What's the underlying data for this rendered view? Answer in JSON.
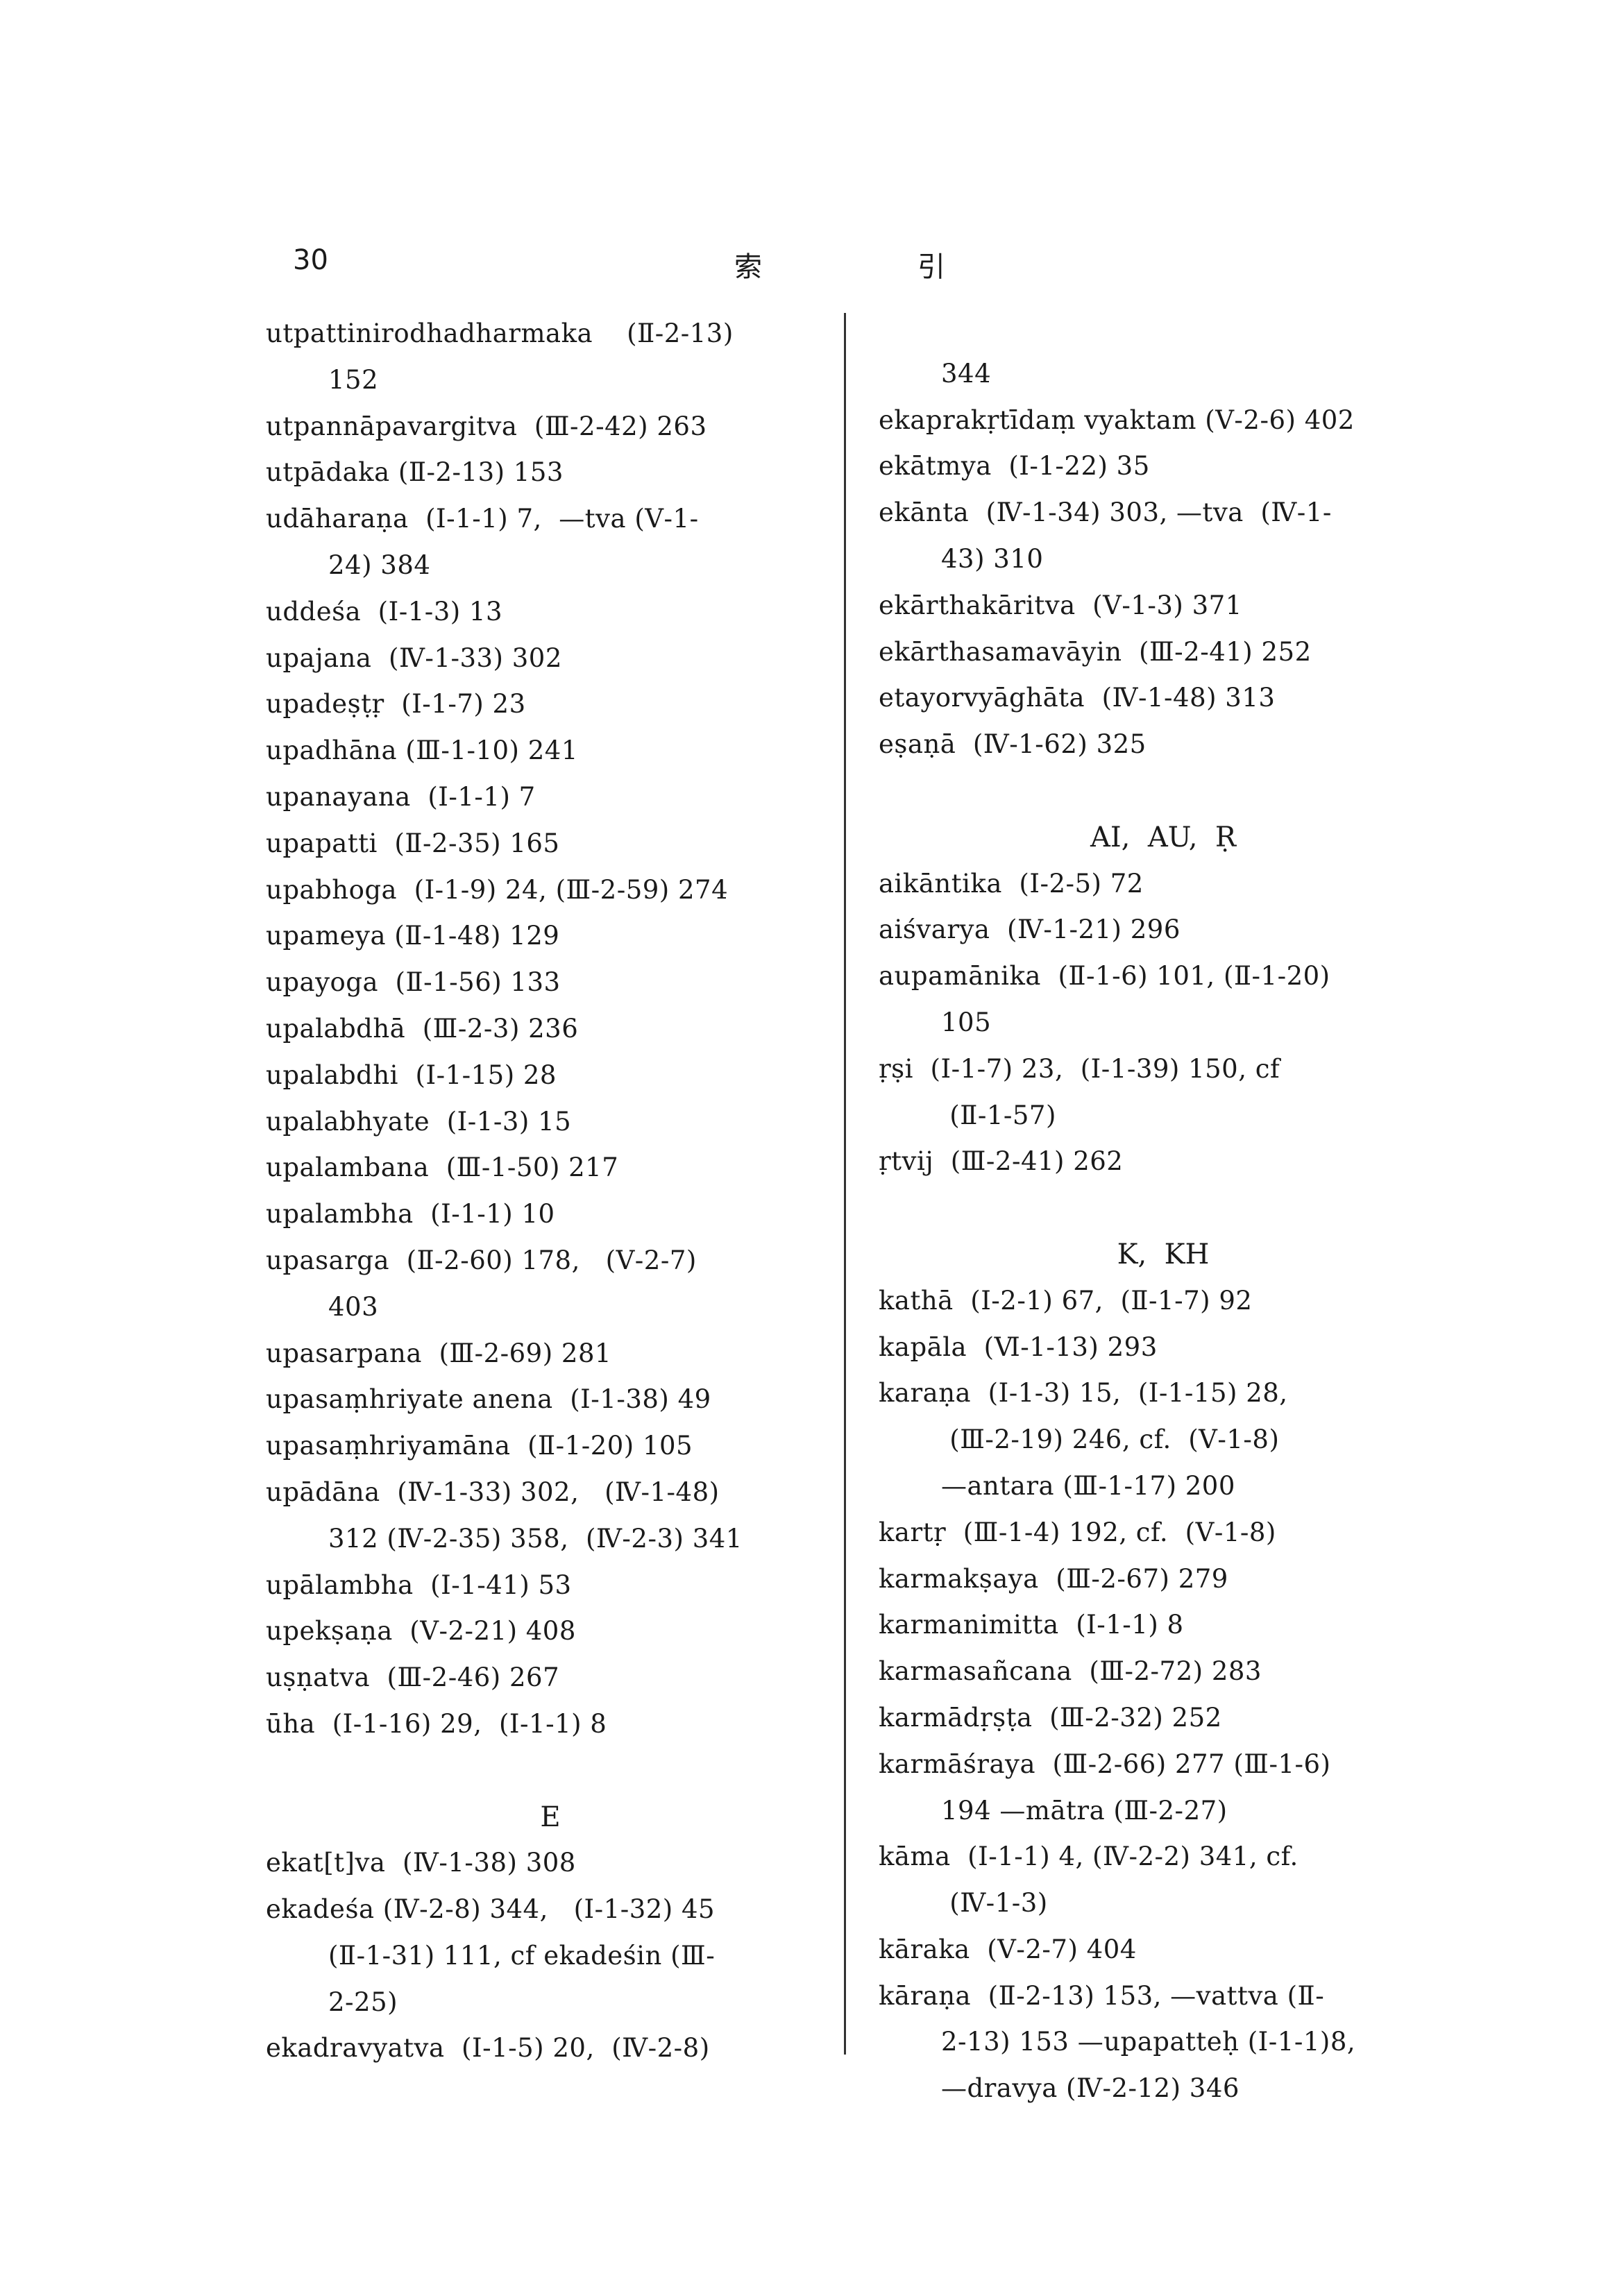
{
  "header": {
    "page_number": "30",
    "title_left": "索",
    "title_right": "引"
  },
  "left_column": [
    {
      "type": "entry",
      "lines": [
        "utpattinirodhadharmaka    (Ⅱ-2-13)",
        "152"
      ]
    },
    {
      "type": "entry",
      "lines": [
        "utpannāpavargitva  (Ⅲ-2-42) 263"
      ]
    },
    {
      "type": "entry",
      "lines": [
        "utpādaka (Ⅱ-2-13) 153"
      ]
    },
    {
      "type": "entry",
      "lines": [
        "udāharaṇa  (Ⅰ-1-1) 7,  —tva (Ⅴ-1-",
        "24) 384"
      ]
    },
    {
      "type": "entry",
      "lines": [
        "uddeśa  (Ⅰ-1-3) 13"
      ]
    },
    {
      "type": "entry",
      "lines": [
        "upajana  (Ⅳ-1-33) 302"
      ]
    },
    {
      "type": "entry",
      "lines": [
        "upadeṣṭṛ  (Ⅰ-1-7) 23"
      ]
    },
    {
      "type": "entry",
      "lines": [
        "upadhāna (Ⅲ-1-10) 241"
      ]
    },
    {
      "type": "entry",
      "lines": [
        "upanayana  (Ⅰ-1-1) 7"
      ]
    },
    {
      "type": "entry",
      "lines": [
        "upapatti  (Ⅱ-2-35) 165"
      ]
    },
    {
      "type": "entry",
      "lines": [
        "upabhoga  (Ⅰ-1-9) 24, (Ⅲ-2-59) 274"
      ]
    },
    {
      "type": "entry",
      "lines": [
        "upameya (Ⅱ-1-48) 129"
      ]
    },
    {
      "type": "entry",
      "lines": [
        "upayoga  (Ⅱ-1-56) 133"
      ]
    },
    {
      "type": "entry",
      "lines": [
        "upalabdhā  (Ⅲ-2-3) 236"
      ]
    },
    {
      "type": "entry",
      "lines": [
        "upalabdhi  (Ⅰ-1-15) 28"
      ]
    },
    {
      "type": "entry",
      "lines": [
        "upalabhyate  (Ⅰ-1-3) 15"
      ]
    },
    {
      "type": "entry",
      "lines": [
        "upalambana  (Ⅲ-1-50) 217"
      ]
    },
    {
      "type": "entry",
      "lines": [
        "upalambha  (Ⅰ-1-1) 10"
      ]
    },
    {
      "type": "entry",
      "lines": [
        "upasarga  (Ⅱ-2-60) 178,   (Ⅴ-2-7)",
        "403"
      ]
    },
    {
      "type": "entry",
      "lines": [
        "upasarpana  (Ⅲ-2-69) 281"
      ]
    },
    {
      "type": "entry",
      "lines": [
        "upasaṃhriyate anena  (Ⅰ-1-38) 49"
      ]
    },
    {
      "type": "entry",
      "lines": [
        "upasaṃhriyamāna  (Ⅱ-1-20) 105"
      ]
    },
    {
      "type": "entry",
      "lines": [
        "upādāna  (Ⅳ-1-33) 302,   (Ⅳ-1-48)",
        "312 (Ⅳ-2-35) 358,  (Ⅳ-2-3) 341"
      ]
    },
    {
      "type": "entry",
      "lines": [
        "upālambha  (Ⅰ-1-41) 53"
      ]
    },
    {
      "type": "entry",
      "lines": [
        "upekṣaṇa  (Ⅴ-2-21) 408"
      ]
    },
    {
      "type": "entry",
      "lines": [
        "uṣṇatva  (Ⅲ-2-46) 267"
      ]
    },
    {
      "type": "entry",
      "lines": [
        "ūha  (Ⅰ-1-16) 29,  (Ⅰ-1-1) 8"
      ]
    },
    {
      "type": "heading",
      "text": "E"
    },
    {
      "type": "entry",
      "lines": [
        "ekat[t]va  (Ⅳ-1-38) 308"
      ]
    },
    {
      "type": "entry",
      "lines": [
        "ekadeśa (Ⅳ-2-8) 344,   (Ⅰ-1-32) 45",
        "(Ⅱ-1-31) 111, cf ekadeśin (Ⅲ-",
        "2-25)"
      ]
    },
    {
      "type": "entry",
      "lines": [
        "ekadravyatva  (Ⅰ-1-5) 20,  (Ⅳ-2-8)"
      ]
    }
  ],
  "right_column": [
    {
      "type": "entry",
      "lines": [
        "",
        "344"
      ]
    },
    {
      "type": "entry",
      "lines": [
        "ekaprakṛtīdaṃ vyaktam (Ⅴ-2-6) 402"
      ]
    },
    {
      "type": "entry",
      "lines": [
        "ekātmya  (Ⅰ-1-22) 35"
      ]
    },
    {
      "type": "entry",
      "lines": [
        "ekānta  (Ⅳ-1-34) 303, —tva  (Ⅳ-1-",
        "43) 310"
      ]
    },
    {
      "type": "entry",
      "lines": [
        "ekārthakāritva  (Ⅴ-1-3) 371"
      ]
    },
    {
      "type": "entry",
      "lines": [
        "ekārthasamavāyin  (Ⅲ-2-41) 252"
      ]
    },
    {
      "type": "entry",
      "lines": [
        "etayorvyāghāta  (Ⅳ-1-48) 313"
      ]
    },
    {
      "type": "entry",
      "lines": [
        "eṣaṇā  (Ⅳ-1-62) 325"
      ]
    },
    {
      "type": "heading",
      "text": "AI,  AU,  Ṛ"
    },
    {
      "type": "entry",
      "lines": [
        "aikāntika  (Ⅰ-2-5) 72"
      ]
    },
    {
      "type": "entry",
      "lines": [
        "aiśvarya  (Ⅳ-1-21) 296"
      ]
    },
    {
      "type": "entry",
      "lines": [
        "aupamānika  (Ⅱ-1-6) 101, (Ⅱ-1-20)",
        "105"
      ]
    },
    {
      "type": "entry",
      "lines": [
        "ṛṣi  (Ⅰ-1-7) 23,  (Ⅰ-1-39) 150, cf",
        " (Ⅱ-1-57)"
      ]
    },
    {
      "type": "entry",
      "lines": [
        "ṛtvij  (Ⅲ-2-41) 262"
      ]
    },
    {
      "type": "heading",
      "text": "K,  KH"
    },
    {
      "type": "entry",
      "lines": [
        "kathā  (Ⅰ-2-1) 67,  (Ⅱ-1-7) 92"
      ]
    },
    {
      "type": "entry",
      "lines": [
        "kapāla  (Ⅵ-1-13) 293"
      ]
    },
    {
      "type": "entry",
      "lines": [
        "karaṇa  (Ⅰ-1-3) 15,  (Ⅰ-1-15) 28,",
        " (Ⅲ-2-19) 246, cf.  (Ⅴ-1-8)",
        "—antara (Ⅲ-1-17) 200"
      ]
    },
    {
      "type": "entry",
      "lines": [
        "kartṛ  (Ⅲ-1-4) 192, cf.  (Ⅴ-1-8)"
      ]
    },
    {
      "type": "entry",
      "lines": [
        "karmakṣaya  (Ⅲ-2-67) 279"
      ]
    },
    {
      "type": "entry",
      "lines": [
        "karmanimitta  (Ⅰ-1-1) 8"
      ]
    },
    {
      "type": "entry",
      "lines": [
        "karmasañcana  (Ⅲ-2-72) 283"
      ]
    },
    {
      "type": "entry",
      "lines": [
        "karmādṛṣṭa  (Ⅲ-2-32) 252"
      ]
    },
    {
      "type": "entry",
      "lines": [
        "karmāśraya  (Ⅲ-2-66) 277 (Ⅲ-1-6)",
        "194 —mātra (Ⅲ-2-27)"
      ]
    },
    {
      "type": "entry",
      "lines": [
        "kāma  (Ⅰ-1-1) 4, (Ⅳ-2-2) 341, cf.",
        " (Ⅳ-1-3)"
      ]
    },
    {
      "type": "entry",
      "lines": [
        "kāraka  (Ⅴ-2-7) 404"
      ]
    },
    {
      "type": "entry",
      "lines": [
        "kāraṇa  (Ⅱ-2-13) 153, —vattva (Ⅱ-",
        "2-13) 153 —upapatteḥ (Ⅰ-1-1)8,",
        "—dravya (Ⅳ-2-12) 346"
      ]
    }
  ]
}
